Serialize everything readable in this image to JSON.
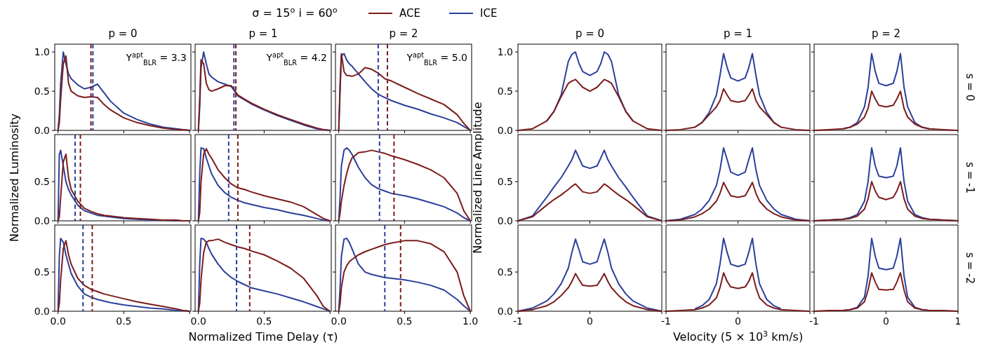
{
  "chart_data": [
    {
      "type": "line",
      "title": "p = 0",
      "x": [
        0,
        0.01,
        0.02,
        0.04,
        0.06,
        0.08,
        0.1,
        0.15,
        0.2,
        0.25,
        0.3,
        0.35,
        0.4,
        0.5,
        0.6,
        0.7,
        0.8,
        0.9,
        0.95,
        1
      ],
      "xlim": [
        -0.025,
        1.01
      ],
      "ylim": [
        0,
        1.1
      ],
      "xticks": [
        {
          "value": 0,
          "label": null
        },
        {
          "value": 0.5,
          "label": null
        },
        {
          "value": 1,
          "label": null
        }
      ],
      "yticks": [
        {
          "value": 0,
          "label": "0.0"
        },
        {
          "value": 0.5,
          "label": "0.5"
        },
        {
          "value": 1,
          "label": "1.0"
        }
      ],
      "tick_labels": "y",
      "legend": "top",
      "annotations": [
        "Y$^{apt}$$_{BLR}$ = 3.3",
        "σ = 15$^{o}$    i = 60$^{o}$"
      ],
      "ref_lines": [
        {
          "axis": "x",
          "value": 0.265,
          "color": "#2b3f9a",
          "line_style": "dashed"
        },
        {
          "axis": "x",
          "value": 0.25,
          "color": "#7b1c1c",
          "line_style": "dashed"
        }
      ],
      "series": [
        {
          "name": "ACE",
          "color": "#7b1c1c",
          "values": [
            0,
            0.1,
            0.4,
            0.85,
            0.95,
            0.6,
            0.5,
            0.44,
            0.42,
            0.43,
            0.42,
            0.33,
            0.26,
            0.16,
            0.1,
            0.06,
            0.03,
            0.01,
            0.01,
            0
          ]
        },
        {
          "name": "ICE",
          "color": "#2b3f9a",
          "values": [
            0,
            0.2,
            0.6,
            1.0,
            0.85,
            0.72,
            0.66,
            0.58,
            0.53,
            0.55,
            0.59,
            0.48,
            0.37,
            0.22,
            0.14,
            0.08,
            0.04,
            0.02,
            0.01,
            0
          ]
        }
      ]
    },
    {
      "type": "line",
      "title": "p = 1",
      "x": [
        0,
        0.01,
        0.02,
        0.04,
        0.06,
        0.08,
        0.1,
        0.15,
        0.2,
        0.25,
        0.3,
        0.35,
        0.4,
        0.5,
        0.6,
        0.7,
        0.8,
        0.9,
        0.95,
        1
      ],
      "xlim": [
        -0.025,
        1.01
      ],
      "ylim": [
        0,
        1.1
      ],
      "xticks": [
        {
          "value": 0,
          "label": null
        },
        {
          "value": 0.5,
          "label": null
        },
        {
          "value": 1,
          "label": null
        }
      ],
      "yticks": [
        {
          "value": 0,
          "label": null
        },
        {
          "value": 0.5,
          "label": null
        },
        {
          "value": 1,
          "label": null
        }
      ],
      "tick_labels": false,
      "annotations": [
        "Y$^{apt}$$_{BLR}$ = 4.2"
      ],
      "ref_lines": [
        {
          "axis": "x",
          "value": 0.27,
          "color": "#2b3f9a",
          "line_style": "dashed"
        },
        {
          "axis": "x",
          "value": 0.285,
          "color": "#7b1c1c",
          "line_style": "dashed"
        }
      ],
      "series": [
        {
          "color": "#7b1c1c",
          "values": [
            0,
            0.4,
            0.9,
            0.85,
            0.6,
            0.52,
            0.5,
            0.53,
            0.57,
            0.57,
            0.45,
            0.4,
            0.35,
            0.27,
            0.2,
            0.14,
            0.08,
            0.03,
            0.01,
            0
          ]
        },
        {
          "color": "#2b3f9a",
          "values": [
            0,
            0.3,
            0.8,
            1.0,
            0.85,
            0.72,
            0.68,
            0.62,
            0.59,
            0.56,
            0.44,
            0.39,
            0.34,
            0.26,
            0.19,
            0.13,
            0.07,
            0.02,
            0.01,
            0
          ]
        }
      ]
    },
    {
      "type": "line",
      "title": "p = 2",
      "x": [
        0,
        0.01,
        0.02,
        0.04,
        0.06,
        0.08,
        0.1,
        0.15,
        0.2,
        0.25,
        0.3,
        0.35,
        0.4,
        0.5,
        0.6,
        0.7,
        0.8,
        0.9,
        0.95,
        1
      ],
      "xlim": [
        -0.025,
        1.01
      ],
      "ylim": [
        0,
        1.1
      ],
      "xticks": [
        {
          "value": 0,
          "label": null
        },
        {
          "value": 0.5,
          "label": null
        },
        {
          "value": 1,
          "label": null
        }
      ],
      "yticks": [
        {
          "value": 0,
          "label": null
        },
        {
          "value": 0.5,
          "label": null
        },
        {
          "value": 1,
          "label": null
        }
      ],
      "tick_labels": false,
      "annotations": [
        "Y$^{apt}$$_{BLR}$ = 5.0"
      ],
      "ref_lines": [
        {
          "axis": "x",
          "value": 0.3,
          "color": "#2b3f9a",
          "line_style": "dashed"
        },
        {
          "axis": "x",
          "value": 0.37,
          "color": "#7b1c1c",
          "line_style": "dashed"
        }
      ],
      "series": [
        {
          "color": "#7b1c1c",
          "values": [
            0,
            0.6,
            0.98,
            0.75,
            0.7,
            0.7,
            0.69,
            0.72,
            0.8,
            0.78,
            0.73,
            0.66,
            0.63,
            0.55,
            0.47,
            0.4,
            0.33,
            0.2,
            0.09,
            0
          ]
        },
        {
          "color": "#2b3f9a",
          "values": [
            0,
            0.5,
            0.95,
            0.98,
            0.9,
            0.85,
            0.82,
            0.72,
            0.62,
            0.53,
            0.46,
            0.42,
            0.38,
            0.32,
            0.27,
            0.21,
            0.16,
            0.1,
            0.05,
            0
          ]
        }
      ]
    },
    {
      "type": "line",
      "ylabel": "Normalized Luminosity",
      "x": [
        0,
        0.01,
        0.02,
        0.04,
        0.06,
        0.08,
        0.1,
        0.15,
        0.2,
        0.25,
        0.3,
        0.35,
        0.4,
        0.5,
        0.6,
        0.7,
        0.8,
        0.9,
        0.95,
        1
      ],
      "xlim": [
        -0.025,
        1.01
      ],
      "ylim": [
        0,
        1.1
      ],
      "xticks": [
        {
          "value": 0,
          "label": null
        },
        {
          "value": 0.5,
          "label": null
        },
        {
          "value": 1,
          "label": null
        }
      ],
      "yticks": [
        {
          "value": 0,
          "label": "0.0"
        },
        {
          "value": 0.5,
          "label": "0.5"
        }
      ],
      "tick_labels": "y",
      "ref_lines": [
        {
          "axis": "x",
          "value": 0.13,
          "color": "#2b3f9a",
          "line_style": "dashed"
        },
        {
          "axis": "x",
          "value": 0.17,
          "color": "#7b1c1c",
          "line_style": "dashed"
        }
      ],
      "series": [
        {
          "color": "#7b1c1c",
          "values": [
            0,
            0.05,
            0.3,
            0.75,
            0.85,
            0.55,
            0.4,
            0.25,
            0.16,
            0.12,
            0.09,
            0.07,
            0.06,
            0.04,
            0.03,
            0.02,
            0.01,
            0.01,
            0,
            0
          ]
        },
        {
          "color": "#2b3f9a",
          "values": [
            0,
            0.85,
            0.9,
            0.7,
            0.5,
            0.4,
            0.33,
            0.2,
            0.13,
            0.1,
            0.07,
            0.06,
            0.05,
            0.03,
            0.02,
            0.01,
            0.01,
            0,
            0,
            0
          ]
        }
      ]
    },
    {
      "type": "line",
      "x": [
        0,
        0.01,
        0.02,
        0.04,
        0.06,
        0.08,
        0.1,
        0.15,
        0.2,
        0.25,
        0.3,
        0.35,
        0.4,
        0.5,
        0.6,
        0.7,
        0.8,
        0.9,
        0.95,
        1
      ],
      "xlim": [
        -0.025,
        1.01
      ],
      "ylim": [
        0,
        1.1
      ],
      "xticks": [
        {
          "value": 0,
          "label": null
        },
        {
          "value": 0.5,
          "label": null
        },
        {
          "value": 1,
          "label": null
        }
      ],
      "yticks": [
        {
          "value": 0,
          "label": null
        },
        {
          "value": 0.5,
          "label": null
        }
      ],
      "tick_labels": false,
      "ref_lines": [
        {
          "axis": "x",
          "value": 0.23,
          "color": "#2b3f9a",
          "line_style": "dashed"
        },
        {
          "axis": "x",
          "value": 0.3,
          "color": "#7b1c1c",
          "line_style": "dashed"
        }
      ],
      "series": [
        {
          "color": "#7b1c1c",
          "values": [
            0,
            0.1,
            0.5,
            0.85,
            0.92,
            0.85,
            0.8,
            0.65,
            0.55,
            0.47,
            0.42,
            0.4,
            0.37,
            0.32,
            0.28,
            0.24,
            0.18,
            0.08,
            0.03,
            0
          ]
        },
        {
          "color": "#2b3f9a",
          "values": [
            0,
            0.6,
            0.93,
            0.92,
            0.8,
            0.7,
            0.6,
            0.45,
            0.36,
            0.3,
            0.26,
            0.23,
            0.21,
            0.17,
            0.14,
            0.1,
            0.07,
            0.03,
            0.01,
            0
          ]
        }
      ]
    },
    {
      "type": "line",
      "x": [
        0,
        0.01,
        0.02,
        0.04,
        0.06,
        0.08,
        0.1,
        0.15,
        0.2,
        0.25,
        0.3,
        0.35,
        0.4,
        0.5,
        0.6,
        0.7,
        0.8,
        0.9,
        0.95,
        1
      ],
      "xlim": [
        -0.025,
        1.01
      ],
      "ylim": [
        0,
        1.1
      ],
      "xticks": [
        {
          "value": 0,
          "label": null
        },
        {
          "value": 0.5,
          "label": null
        },
        {
          "value": 1,
          "label": null
        }
      ],
      "yticks": [
        {
          "value": 0,
          "label": null
        },
        {
          "value": 0.5,
          "label": null
        }
      ],
      "tick_labels": false,
      "ref_lines": [
        {
          "axis": "x",
          "value": 0.31,
          "color": "#2b3f9a",
          "line_style": "dashed"
        },
        {
          "axis": "x",
          "value": 0.42,
          "color": "#7b1c1c",
          "line_style": "dashed"
        }
      ],
      "series": [
        {
          "color": "#7b1c1c",
          "values": [
            0,
            0.1,
            0.25,
            0.45,
            0.6,
            0.72,
            0.8,
            0.87,
            0.88,
            0.9,
            0.88,
            0.86,
            0.83,
            0.78,
            0.72,
            0.65,
            0.55,
            0.35,
            0.13,
            0
          ]
        },
        {
          "color": "#2b3f9a",
          "values": [
            0,
            0.3,
            0.7,
            0.9,
            0.93,
            0.9,
            0.85,
            0.68,
            0.55,
            0.46,
            0.41,
            0.38,
            0.35,
            0.32,
            0.28,
            0.23,
            0.18,
            0.1,
            0.04,
            0
          ]
        }
      ]
    },
    {
      "type": "line",
      "x": [
        0,
        0.01,
        0.02,
        0.04,
        0.06,
        0.08,
        0.1,
        0.15,
        0.2,
        0.25,
        0.3,
        0.35,
        0.4,
        0.5,
        0.6,
        0.7,
        0.8,
        0.9,
        0.95,
        1
      ],
      "xlim": [
        -0.025,
        1.01
      ],
      "ylim": [
        0,
        1.1
      ],
      "xticks": [
        {
          "value": 0,
          "label": "0.0"
        },
        {
          "value": 0.5,
          "label": "0.5"
        },
        {
          "value": 1,
          "label": null
        }
      ],
      "yticks": [
        {
          "value": 0,
          "label": "0.0"
        },
        {
          "value": 0.5,
          "label": "0.5"
        }
      ],
      "ref_lines": [
        {
          "axis": "x",
          "value": 0.19,
          "color": "#2b3f9a",
          "line_style": "dashed"
        },
        {
          "axis": "x",
          "value": 0.26,
          "color": "#7b1c1c",
          "line_style": "dashed"
        }
      ],
      "series": [
        {
          "color": "#7b1c1c",
          "values": [
            0,
            0.1,
            0.4,
            0.8,
            0.9,
            0.72,
            0.6,
            0.42,
            0.33,
            0.28,
            0.25,
            0.22,
            0.2,
            0.16,
            0.12,
            0.09,
            0.06,
            0.03,
            0.01,
            0
          ]
        },
        {
          "color": "#2b3f9a",
          "values": [
            0,
            0.7,
            0.93,
            0.88,
            0.72,
            0.6,
            0.48,
            0.32,
            0.22,
            0.18,
            0.15,
            0.13,
            0.11,
            0.08,
            0.06,
            0.04,
            0.03,
            0.01,
            0.01,
            0
          ]
        }
      ]
    },
    {
      "type": "line",
      "xlabel": "Normalized Time Delay (τ)",
      "x": [
        0,
        0.01,
        0.02,
        0.04,
        0.06,
        0.08,
        0.1,
        0.15,
        0.2,
        0.25,
        0.3,
        0.35,
        0.4,
        0.5,
        0.6,
        0.7,
        0.8,
        0.9,
        0.95,
        1
      ],
      "xlim": [
        -0.025,
        1.01
      ],
      "ylim": [
        0,
        1.1
      ],
      "xticks": [
        {
          "value": 0,
          "label": "0.0"
        },
        {
          "value": 0.5,
          "label": "0.5"
        },
        {
          "value": 1,
          "label": null
        }
      ],
      "yticks": [
        {
          "value": 0,
          "label": null
        },
        {
          "value": 0.5,
          "label": null
        }
      ],
      "tick_labels": "x",
      "ref_lines": [
        {
          "axis": "x",
          "value": 0.29,
          "color": "#2b3f9a",
          "line_style": "dashed"
        },
        {
          "axis": "x",
          "value": 0.39,
          "color": "#7b1c1c",
          "line_style": "dashed"
        }
      ],
      "series": [
        {
          "color": "#7b1c1c",
          "values": [
            0,
            0.1,
            0.4,
            0.75,
            0.88,
            0.9,
            0.9,
            0.92,
            0.88,
            0.85,
            0.82,
            0.8,
            0.77,
            0.72,
            0.64,
            0.55,
            0.42,
            0.2,
            0.06,
            0
          ]
        },
        {
          "color": "#2b3f9a",
          "values": [
            0,
            0.6,
            0.93,
            0.92,
            0.88,
            0.8,
            0.73,
            0.6,
            0.5,
            0.43,
            0.38,
            0.34,
            0.3,
            0.26,
            0.22,
            0.17,
            0.12,
            0.06,
            0.03,
            0
          ]
        }
      ]
    },
    {
      "type": "line",
      "x": [
        0,
        0.01,
        0.02,
        0.04,
        0.06,
        0.08,
        0.1,
        0.15,
        0.2,
        0.25,
        0.3,
        0.35,
        0.4,
        0.5,
        0.6,
        0.7,
        0.8,
        0.9,
        0.95,
        1
      ],
      "xlim": [
        -0.025,
        1.01
      ],
      "ylim": [
        0,
        1.1
      ],
      "xticks": [
        {
          "value": 0,
          "label": "0.0"
        },
        {
          "value": 0.5,
          "label": "0.5"
        },
        {
          "value": 1,
          "label": "1.0"
        }
      ],
      "yticks": [
        {
          "value": 0,
          "label": null
        },
        {
          "value": 0.5,
          "label": null
        }
      ],
      "tick_labels": "x",
      "ref_lines": [
        {
          "axis": "x",
          "value": 0.35,
          "color": "#2b3f9a",
          "line_style": "dashed"
        },
        {
          "axis": "x",
          "value": 0.47,
          "color": "#7b1c1c",
          "line_style": "dashed"
        }
      ],
      "series": [
        {
          "color": "#7b1c1c",
          "values": [
            0,
            0.1,
            0.3,
            0.5,
            0.58,
            0.63,
            0.66,
            0.72,
            0.76,
            0.79,
            0.82,
            0.85,
            0.87,
            0.9,
            0.9,
            0.86,
            0.76,
            0.5,
            0.2,
            0
          ]
        },
        {
          "color": "#2b3f9a",
          "values": [
            0,
            0.3,
            0.7,
            0.92,
            0.93,
            0.88,
            0.8,
            0.6,
            0.5,
            0.47,
            0.45,
            0.43,
            0.42,
            0.4,
            0.37,
            0.33,
            0.27,
            0.15,
            0.07,
            0
          ]
        }
      ]
    },
    {
      "type": "line",
      "title": "p = 0",
      "x": [
        -1,
        -0.8,
        -0.6,
        -0.5,
        -0.4,
        -0.3,
        -0.25,
        -0.2,
        -0.15,
        -0.1,
        0,
        0.1,
        0.15,
        0.2,
        0.25,
        0.3,
        0.4,
        0.5,
        0.6,
        0.8,
        1
      ],
      "xlim": [
        -1,
        1
      ],
      "ylim": [
        0,
        1.1
      ],
      "xticks": [
        {
          "value": -1,
          "label": null
        },
        {
          "value": 0,
          "label": null
        },
        {
          "value": 1,
          "label": null
        }
      ],
      "yticks": [
        {
          "value": 0,
          "label": "0.0"
        },
        {
          "value": 0.5,
          "label": "0.5"
        },
        {
          "value": 1,
          "label": "1.0"
        }
      ],
      "tick_labels": "y",
      "series": [
        {
          "color": "#7b1c1c",
          "values": [
            0,
            0.02,
            0.12,
            0.24,
            0.43,
            0.6,
            0.63,
            0.65,
            0.6,
            0.55,
            0.5,
            0.55,
            0.6,
            0.65,
            0.63,
            0.6,
            0.43,
            0.24,
            0.12,
            0.02,
            0
          ]
        },
        {
          "color": "#2b3f9a",
          "values": [
            null,
            null,
            0.12,
            0.24,
            0.45,
            0.88,
            0.97,
            1.0,
            0.85,
            0.75,
            0.7,
            0.75,
            0.85,
            1.0,
            0.97,
            0.88,
            0.45,
            0.24,
            0.12,
            null,
            null
          ]
        }
      ]
    },
    {
      "type": "line",
      "title": "p = 1",
      "x": [
        -1,
        -0.8,
        -0.6,
        -0.5,
        -0.4,
        -0.3,
        -0.25,
        -0.2,
        -0.15,
        -0.1,
        0,
        0.1,
        0.15,
        0.2,
        0.25,
        0.3,
        0.4,
        0.5,
        0.6,
        0.8,
        1
      ],
      "xlim": [
        -1,
        1
      ],
      "ylim": [
        0,
        1.1
      ],
      "xticks": [
        {
          "value": -1,
          "label": null
        },
        {
          "value": 0,
          "label": null
        },
        {
          "value": 1,
          "label": null
        }
      ],
      "yticks": [
        {
          "value": 0,
          "label": null
        },
        {
          "value": 0.5,
          "label": null
        },
        {
          "value": 1,
          "label": null
        }
      ],
      "tick_labels": false,
      "series": [
        {
          "color": "#7b1c1c",
          "values": [
            0,
            0.01,
            0.04,
            0.1,
            0.2,
            0.3,
            0.38,
            0.53,
            0.45,
            0.38,
            0.36,
            0.38,
            0.45,
            0.53,
            0.38,
            0.3,
            0.2,
            0.1,
            0.04,
            0.01,
            0
          ]
        },
        {
          "color": "#2b3f9a",
          "values": [
            null,
            null,
            0.04,
            0.1,
            0.23,
            0.45,
            0.7,
            0.98,
            0.8,
            0.67,
            0.63,
            0.67,
            0.8,
            0.98,
            0.7,
            0.45,
            0.23,
            0.1,
            0.04,
            null,
            null
          ]
        }
      ]
    },
    {
      "type": "line",
      "title": "p = 2",
      "y2label": "s = 0",
      "x": [
        -1,
        -0.8,
        -0.6,
        -0.5,
        -0.4,
        -0.3,
        -0.25,
        -0.2,
        -0.15,
        -0.1,
        0,
        0.1,
        0.15,
        0.2,
        0.25,
        0.3,
        0.4,
        0.5,
        0.6,
        0.8,
        1
      ],
      "xlim": [
        -1,
        1
      ],
      "ylim": [
        0,
        1.1
      ],
      "xticks": [
        {
          "value": -1,
          "label": null
        },
        {
          "value": 0,
          "label": null
        },
        {
          "value": 1,
          "label": null
        }
      ],
      "yticks": [
        {
          "value": 0,
          "label": null
        },
        {
          "value": 0.5,
          "label": null
        },
        {
          "value": 1,
          "label": null
        }
      ],
      "tick_labels": false,
      "series": [
        {
          "color": "#7b1c1c",
          "values": [
            0,
            0.01,
            0.02,
            0.04,
            0.08,
            0.17,
            0.28,
            0.5,
            0.4,
            0.32,
            0.3,
            0.32,
            0.4,
            0.5,
            0.28,
            0.17,
            0.08,
            0.04,
            0.02,
            0.01,
            0
          ]
        },
        {
          "color": "#2b3f9a",
          "values": [
            null,
            null,
            0.02,
            0.04,
            0.1,
            0.3,
            0.55,
            0.98,
            0.75,
            0.6,
            0.57,
            0.6,
            0.75,
            0.98,
            0.55,
            0.3,
            0.1,
            0.04,
            0.02,
            null,
            null
          ]
        }
      ]
    },
    {
      "type": "line",
      "ylabel": "Normalized Line Amplitude",
      "x": [
        -1,
        -0.8,
        -0.6,
        -0.5,
        -0.4,
        -0.3,
        -0.25,
        -0.2,
        -0.15,
        -0.1,
        0,
        0.1,
        0.15,
        0.2,
        0.25,
        0.3,
        0.4,
        0.5,
        0.6,
        0.8,
        1
      ],
      "xlim": [
        -1,
        1
      ],
      "ylim": [
        0,
        1.1
      ],
      "xticks": [
        {
          "value": -1,
          "label": null
        },
        {
          "value": 0,
          "label": null
        },
        {
          "value": 1,
          "label": null
        }
      ],
      "yticks": [
        {
          "value": 0,
          "label": "0.0"
        },
        {
          "value": 0.5,
          "label": "0.5"
        }
      ],
      "tick_labels": "y",
      "series": [
        {
          "color": "#7b1c1c",
          "values": [
            0,
            0.05,
            0.2,
            0.27,
            0.33,
            0.4,
            0.44,
            0.47,
            0.42,
            0.37,
            0.35,
            0.37,
            0.42,
            0.47,
            0.44,
            0.4,
            0.33,
            0.27,
            0.2,
            0.05,
            0
          ]
        },
        {
          "color": "#2b3f9a",
          "values": [
            0,
            0.06,
            0.3,
            0.43,
            0.55,
            0.7,
            0.78,
            0.9,
            0.8,
            0.7,
            0.67,
            0.7,
            0.8,
            0.9,
            0.78,
            0.7,
            0.55,
            0.43,
            0.3,
            0.06,
            0
          ]
        }
      ]
    },
    {
      "type": "line",
      "x": [
        -1,
        -0.8,
        -0.6,
        -0.5,
        -0.4,
        -0.3,
        -0.25,
        -0.2,
        -0.15,
        -0.1,
        0,
        0.1,
        0.15,
        0.2,
        0.25,
        0.3,
        0.4,
        0.5,
        0.6,
        0.8,
        1
      ],
      "xlim": [
        -1,
        1
      ],
      "ylim": [
        0,
        1.1
      ],
      "xticks": [
        {
          "value": -1,
          "label": null
        },
        {
          "value": 0,
          "label": null
        },
        {
          "value": 1,
          "label": null
        }
      ],
      "yticks": [
        {
          "value": 0,
          "label": null
        },
        {
          "value": 0.5,
          "label": null
        }
      ],
      "tick_labels": false,
      "series": [
        {
          "color": "#7b1c1c",
          "values": [
            0,
            0.01,
            0.05,
            0.09,
            0.15,
            0.25,
            0.35,
            0.49,
            0.4,
            0.32,
            0.3,
            0.32,
            0.4,
            0.49,
            0.35,
            0.25,
            0.15,
            0.09,
            0.05,
            0.01,
            0
          ]
        },
        {
          "color": "#2b3f9a",
          "values": [
            0,
            0.02,
            0.08,
            0.15,
            0.26,
            0.45,
            0.65,
            0.93,
            0.78,
            0.62,
            0.58,
            0.62,
            0.78,
            0.93,
            0.65,
            0.45,
            0.26,
            0.15,
            0.08,
            0.02,
            0
          ]
        }
      ]
    },
    {
      "type": "line",
      "y2label": "s = -1",
      "x": [
        -1,
        -0.8,
        -0.6,
        -0.5,
        -0.4,
        -0.3,
        -0.25,
        -0.2,
        -0.15,
        -0.1,
        0,
        0.1,
        0.15,
        0.2,
        0.25,
        0.3,
        0.4,
        0.5,
        0.6,
        0.8,
        1
      ],
      "xlim": [
        -1,
        1
      ],
      "ylim": [
        0,
        1.1
      ],
      "xticks": [
        {
          "value": -1,
          "label": null
        },
        {
          "value": 0,
          "label": null
        },
        {
          "value": 1,
          "label": null
        }
      ],
      "yticks": [
        {
          "value": 0,
          "label": null
        },
        {
          "value": 0.5,
          "label": null
        }
      ],
      "tick_labels": false,
      "series": [
        {
          "color": "#7b1c1c",
          "values": [
            0,
            0.01,
            0.02,
            0.03,
            0.06,
            0.15,
            0.28,
            0.5,
            0.38,
            0.3,
            0.27,
            0.3,
            0.38,
            0.5,
            0.28,
            0.15,
            0.06,
            0.03,
            0.02,
            0.01,
            0
          ]
        },
        {
          "color": "#2b3f9a",
          "values": [
            0,
            0.01,
            0.02,
            0.04,
            0.08,
            0.25,
            0.5,
            0.93,
            0.7,
            0.57,
            0.55,
            0.57,
            0.7,
            0.93,
            0.5,
            0.25,
            0.08,
            0.04,
            0.02,
            0.01,
            0
          ]
        }
      ]
    },
    {
      "type": "line",
      "x": [
        -1,
        -0.8,
        -0.6,
        -0.5,
        -0.4,
        -0.3,
        -0.25,
        -0.2,
        -0.15,
        -0.1,
        0,
        0.1,
        0.15,
        0.2,
        0.25,
        0.3,
        0.4,
        0.5,
        0.6,
        0.8,
        1
      ],
      "xlim": [
        -1,
        1
      ],
      "ylim": [
        0,
        1.1
      ],
      "xticks": [
        -1,
        0,
        {
          "value": 1,
          "label": null
        }
      ],
      "yticks": [
        {
          "value": 0,
          "label": "0.0"
        },
        {
          "value": 0.5,
          "label": "0.5"
        }
      ],
      "series": [
        {
          "color": "#7b1c1c",
          "values": [
            0,
            0.02,
            0.07,
            0.12,
            0.2,
            0.3,
            0.38,
            0.48,
            0.4,
            0.33,
            0.32,
            0.33,
            0.4,
            0.48,
            0.38,
            0.3,
            0.2,
            0.12,
            0.07,
            0.02,
            0
          ]
        },
        {
          "color": "#2b3f9a",
          "values": [
            0,
            0.04,
            0.13,
            0.22,
            0.35,
            0.55,
            0.75,
            0.92,
            0.78,
            0.63,
            0.6,
            0.63,
            0.78,
            0.92,
            0.75,
            0.55,
            0.35,
            0.22,
            0.13,
            0.04,
            0
          ]
        }
      ]
    },
    {
      "type": "line",
      "xlabel": "Velocity (5 × 10$^{3}$ km/s)",
      "x": [
        -1,
        -0.8,
        -0.6,
        -0.5,
        -0.4,
        -0.3,
        -0.25,
        -0.2,
        -0.15,
        -0.1,
        0,
        0.1,
        0.15,
        0.2,
        0.25,
        0.3,
        0.4,
        0.5,
        0.6,
        0.8,
        1
      ],
      "xlim": [
        -1,
        1
      ],
      "ylim": [
        0,
        1.1
      ],
      "xticks": [
        -1,
        0,
        {
          "value": 1,
          "label": null
        }
      ],
      "yticks": [
        {
          "value": 0,
          "label": null
        },
        {
          "value": 0.5,
          "label": null
        }
      ],
      "tick_labels": "x",
      "series": [
        {
          "color": "#7b1c1c",
          "values": [
            0,
            0.01,
            0.02,
            0.04,
            0.08,
            0.17,
            0.3,
            0.49,
            0.38,
            0.31,
            0.29,
            0.31,
            0.38,
            0.49,
            0.3,
            0.17,
            0.08,
            0.04,
            0.02,
            0.01,
            0
          ]
        },
        {
          "color": "#2b3f9a",
          "values": [
            null,
            null,
            0.03,
            0.07,
            0.15,
            0.35,
            0.6,
            0.93,
            0.75,
            0.6,
            0.57,
            0.6,
            0.75,
            0.93,
            0.6,
            0.35,
            0.15,
            0.07,
            0.03,
            null,
            null
          ]
        }
      ]
    },
    {
      "type": "line",
      "y2label": "s = -2",
      "x": [
        -1,
        -0.8,
        -0.6,
        -0.5,
        -0.4,
        -0.3,
        -0.25,
        -0.2,
        -0.15,
        -0.1,
        0,
        0.1,
        0.15,
        0.2,
        0.25,
        0.3,
        0.4,
        0.5,
        0.6,
        0.8,
        1
      ],
      "xlim": [
        -1,
        1
      ],
      "ylim": [
        0,
        1.1
      ],
      "xticks": [
        -1,
        0,
        1
      ],
      "yticks": [
        {
          "value": 0,
          "label": null
        },
        {
          "value": 0.5,
          "label": null
        }
      ],
      "tick_labels": "x",
      "series": [
        {
          "color": "#7b1c1c",
          "values": [
            0,
            0.01,
            0.01,
            0.02,
            0.04,
            0.12,
            0.27,
            0.49,
            0.37,
            0.28,
            0.27,
            0.28,
            0.37,
            0.49,
            0.27,
            0.12,
            0.04,
            0.02,
            0.01,
            0.01,
            0
          ]
        },
        {
          "color": "#2b3f9a",
          "values": [
            null,
            null,
            0.01,
            0.02,
            0.05,
            0.18,
            0.45,
            0.93,
            0.7,
            0.55,
            0.53,
            0.55,
            0.7,
            0.93,
            0.45,
            0.18,
            0.05,
            0.02,
            0.01,
            null,
            null
          ]
        }
      ]
    }
  ]
}
